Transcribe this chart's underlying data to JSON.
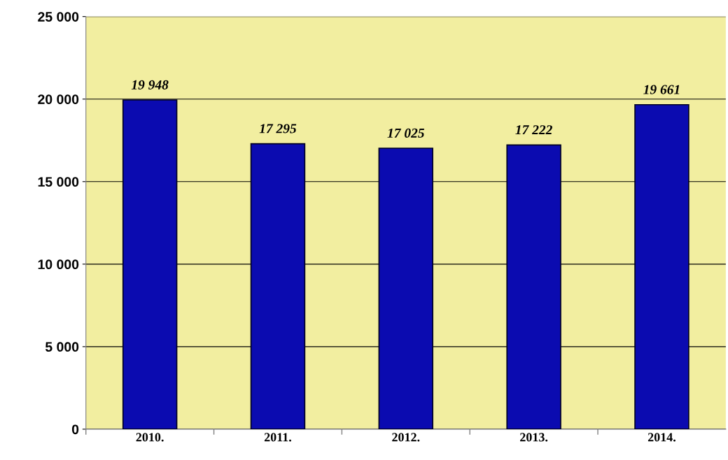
{
  "chart_data": {
    "type": "bar",
    "categories": [
      "2010.",
      "2011.",
      "2012.",
      "2013.",
      "2014."
    ],
    "values": [
      19948,
      17295,
      17025,
      17222,
      19661
    ],
    "value_labels": [
      "19 948",
      "17 295",
      "17 025",
      "17 222",
      "19 661"
    ],
    "color": "#0b0bb0",
    "ylim": [
      0,
      25000
    ],
    "yticks": [
      {
        "value": 0,
        "label": "0"
      },
      {
        "value": 5000,
        "label": "5 000"
      },
      {
        "value": 10000,
        "label": "10 000"
      },
      {
        "value": 15000,
        "label": "15 000"
      },
      {
        "value": 20000,
        "label": "20 000"
      },
      {
        "value": 25000,
        "label": "25 000"
      }
    ],
    "grid": "y",
    "legend": false
  }
}
